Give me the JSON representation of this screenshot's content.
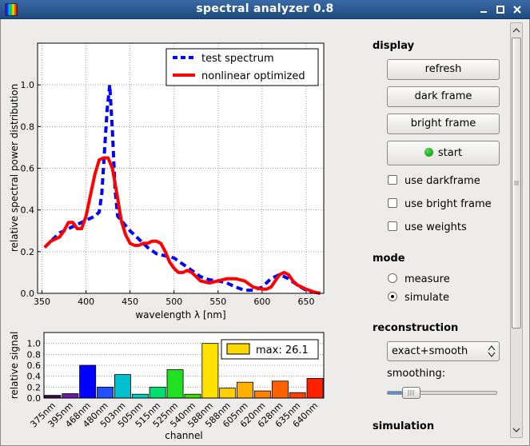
{
  "window": {
    "title": "spectral analyzer 0.8"
  },
  "display": {
    "heading": "display",
    "refresh_label": "refresh",
    "dark_frame_label": "dark frame",
    "bright_frame_label": "bright frame",
    "start_label": "start",
    "use_darkframe_label": "use darkframe",
    "use_bright_frame_label": "use bright frame",
    "use_weights_label": "use weights",
    "use_darkframe_checked": false,
    "use_bright_frame_checked": false,
    "use_weights_checked": false
  },
  "mode": {
    "heading": "mode",
    "options": [
      "measure",
      "simulate"
    ],
    "selected": "simulate"
  },
  "reconstruction": {
    "heading": "reconstruction",
    "method_value": "exact+smooth",
    "smoothing_label": "smoothing:",
    "smoothing_level": 0.2
  },
  "simulation": {
    "heading": "simulation"
  },
  "colors": {
    "test_spectrum": "#0000ff",
    "nonlinear": "#ff0000",
    "legend_max_swatch": "#ffd700"
  },
  "chart_data": [
    {
      "type": "line",
      "xlabel": "wavelength λ [nm]",
      "ylabel": "relative spectral power distribution",
      "xlim": [
        345,
        670
      ],
      "ylim": [
        0,
        1.2
      ],
      "xticks": [
        "350",
        "400",
        "450",
        "500",
        "550",
        "600",
        "650"
      ],
      "yticks": [
        "0.0",
        "0.2",
        "0.4",
        "0.6",
        "0.8",
        "1.0"
      ],
      "grid": true,
      "legend_position": "top-right",
      "series": [
        {
          "name": "test spectrum",
          "style": "dashed",
          "x": [
            353,
            360,
            370,
            380,
            390,
            400,
            410,
            415,
            418,
            421,
            424,
            427,
            430,
            433,
            436,
            440,
            450,
            460,
            470,
            480,
            490,
            500,
            510,
            520,
            530,
            540,
            550,
            560,
            570,
            580,
            590,
            600,
            610,
            620,
            630,
            640,
            650,
            660,
            666
          ],
          "y": [
            0.22,
            0.25,
            0.29,
            0.31,
            0.33,
            0.35,
            0.37,
            0.39,
            0.48,
            0.68,
            0.88,
            1.0,
            0.78,
            0.5,
            0.37,
            0.35,
            0.3,
            0.26,
            0.22,
            0.19,
            0.18,
            0.17,
            0.14,
            0.11,
            0.08,
            0.065,
            0.06,
            0.05,
            0.03,
            0.015,
            0.015,
            0.03,
            0.07,
            0.09,
            0.07,
            0.04,
            0.015,
            0.005,
            0.005
          ]
        },
        {
          "name": "nonlinear optimized",
          "style": "solid",
          "x": [
            353,
            360,
            370,
            375,
            380,
            385,
            390,
            395,
            400,
            405,
            410,
            415,
            420,
            425,
            430,
            435,
            440,
            445,
            450,
            455,
            460,
            465,
            470,
            475,
            480,
            485,
            490,
            495,
            500,
            505,
            510,
            515,
            520,
            525,
            530,
            540,
            550,
            560,
            570,
            580,
            590,
            600,
            605,
            610,
            615,
            620,
            625,
            630,
            635,
            640,
            650,
            660,
            666
          ],
          "y": [
            0.22,
            0.25,
            0.27,
            0.3,
            0.34,
            0.34,
            0.31,
            0.31,
            0.37,
            0.47,
            0.57,
            0.64,
            0.65,
            0.65,
            0.6,
            0.48,
            0.35,
            0.28,
            0.24,
            0.23,
            0.23,
            0.24,
            0.24,
            0.25,
            0.25,
            0.24,
            0.2,
            0.15,
            0.12,
            0.1,
            0.1,
            0.11,
            0.1,
            0.08,
            0.06,
            0.05,
            0.06,
            0.07,
            0.07,
            0.06,
            0.03,
            0.02,
            0.02,
            0.03,
            0.06,
            0.09,
            0.1,
            0.09,
            0.06,
            0.04,
            0.02,
            0.005,
            0.0
          ]
        }
      ]
    },
    {
      "type": "bar",
      "xlabel": "channel",
      "ylabel": "relative signal",
      "ylim": [
        0,
        1.2
      ],
      "yticks": [
        "0.0",
        "0.2",
        "0.4",
        "0.6",
        "0.8",
        "1.0"
      ],
      "legend_label": "max: 26.1",
      "legend_position": "top-right",
      "categories": [
        "375nm",
        "395nm",
        "468nm",
        "480nm",
        "503nm",
        "505nm",
        "515nm",
        "525nm",
        "540nm",
        "588nm",
        "588nm",
        "605nm",
        "620nm",
        "628nm",
        "635nm",
        "640nm"
      ],
      "values": [
        0.05,
        0.08,
        0.6,
        0.2,
        0.43,
        0.07,
        0.2,
        0.52,
        0.07,
        1.0,
        0.18,
        0.29,
        0.13,
        0.31,
        0.1,
        0.36
      ],
      "colors": [
        "#3a0a55",
        "#6a1aaa",
        "#0000ff",
        "#2050ff",
        "#00c0d0",
        "#00d0c0",
        "#00e070",
        "#20e020",
        "#40e000",
        "#ffe000",
        "#ffd000",
        "#ffb000",
        "#ff8000",
        "#ff6000",
        "#ff4000",
        "#ff2000"
      ]
    }
  ]
}
